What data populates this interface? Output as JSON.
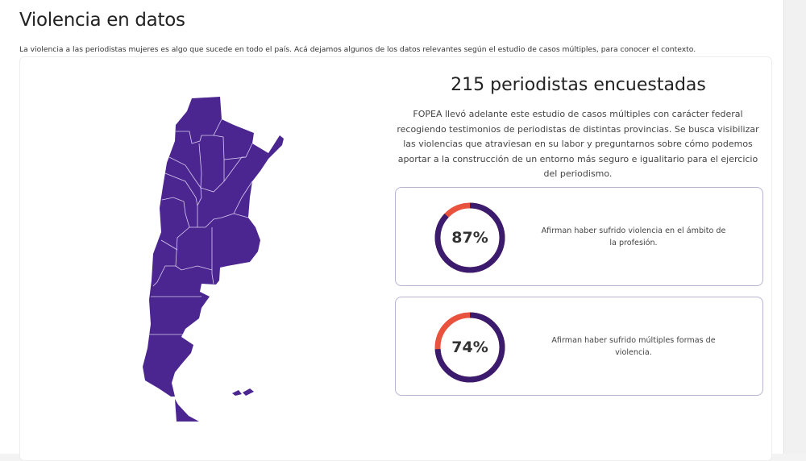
{
  "page": {
    "title": "Violencia en datos",
    "intro": "La violencia a las periodistas mujeres es algo que sucede en todo el país. Acá dejamos algunos de los datos relevantes según el estudio de casos múltiples, para conocer el contexto."
  },
  "map": {
    "fill_color": "#4b2590",
    "border_color": "#d9cdf0"
  },
  "summary": {
    "headline": "215 periodistas encuestadas",
    "description": "FOPEA llevó adelante este estudio de casos múltiples con carácter federal recogiendo testimonios de periodistas de distintas provincias. Se busca visibilizar las violencias que atraviesan en su labor y preguntarnos sobre cómo podemos aportar a la construcción de un entorno más seguro e igualitario para el ejercicio del periodismo."
  },
  "colors": {
    "ring": "#3b1b6e",
    "ring_rest": "#e9523c"
  },
  "stats": [
    {
      "value": 87,
      "label": "87%",
      "text": "Afirman haber sufrido violencia en el ámbito de la profesión."
    },
    {
      "value": 74,
      "label": "74%",
      "text": "Afirman haber sufrido múltiples formas de violencia."
    }
  ]
}
